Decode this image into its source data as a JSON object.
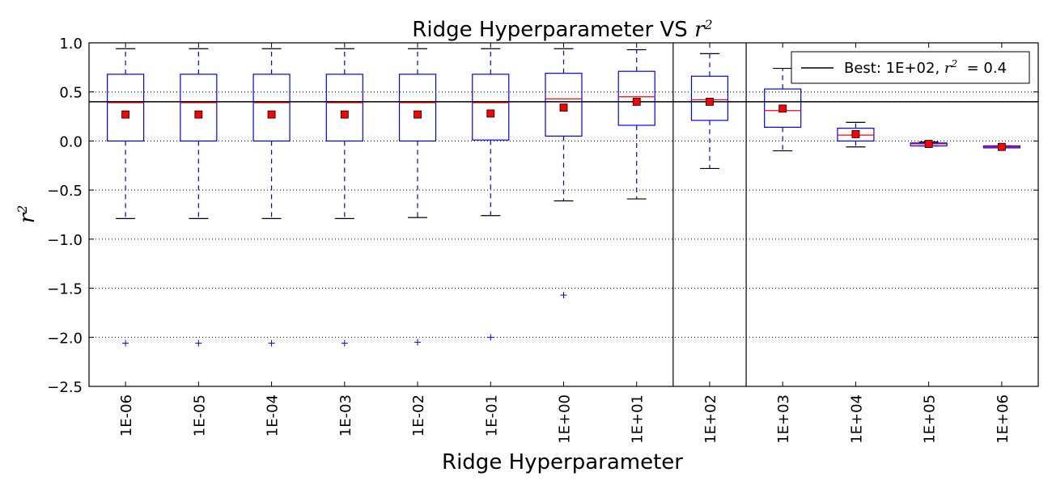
{
  "chart_data": {
    "type": "box",
    "title_prefix": "Ridge Hyperparameter VS ",
    "title_math": "r",
    "title_math_sup": "2",
    "xlabel": "Ridge Hyperparameter",
    "ylabel_math": "r",
    "ylabel_math_sup": "2",
    "ylim": [
      -2.5,
      1.0
    ],
    "yticks": [
      -2.5,
      -2.0,
      -1.5,
      -1.0,
      -0.5,
      0.0,
      0.5,
      1.0
    ],
    "ytick_labels": [
      "−2.5",
      "−2.0",
      "−1.5",
      "−1.0",
      "−0.5",
      "0.0",
      "0.5",
      "1.0"
    ],
    "grid": "horizontal-dotted",
    "categories": [
      "1E-06",
      "1E-05",
      "1E-04",
      "1E-03",
      "1E-02",
      "1E-01",
      "1E+00",
      "1E+01",
      "1E+02",
      "1E+03",
      "1E+04",
      "1E+05",
      "1E+06"
    ],
    "boxes": [
      {
        "whisker_low": -0.79,
        "q1": 0.0,
        "median": 0.39,
        "q3": 0.68,
        "whisker_high": 0.94,
        "mean": 0.27,
        "outliers": [
          -2.06
        ]
      },
      {
        "whisker_low": -0.79,
        "q1": 0.0,
        "median": 0.39,
        "q3": 0.68,
        "whisker_high": 0.94,
        "mean": 0.27,
        "outliers": [
          -2.06
        ]
      },
      {
        "whisker_low": -0.79,
        "q1": 0.0,
        "median": 0.39,
        "q3": 0.68,
        "whisker_high": 0.94,
        "mean": 0.27,
        "outliers": [
          -2.06
        ]
      },
      {
        "whisker_low": -0.79,
        "q1": 0.0,
        "median": 0.39,
        "q3": 0.68,
        "whisker_high": 0.94,
        "mean": 0.27,
        "outliers": [
          -2.06
        ]
      },
      {
        "whisker_low": -0.78,
        "q1": 0.0,
        "median": 0.39,
        "q3": 0.68,
        "whisker_high": 0.94,
        "mean": 0.27,
        "outliers": [
          -2.05
        ]
      },
      {
        "whisker_low": -0.76,
        "q1": 0.01,
        "median": 0.39,
        "q3": 0.68,
        "whisker_high": 0.94,
        "mean": 0.28,
        "outliers": [
          -2.0
        ]
      },
      {
        "whisker_low": -0.61,
        "q1": 0.05,
        "median": 0.43,
        "q3": 0.69,
        "whisker_high": 0.94,
        "mean": 0.34,
        "outliers": [
          -1.57
        ]
      },
      {
        "whisker_low": -0.59,
        "q1": 0.16,
        "median": 0.45,
        "q3": 0.71,
        "whisker_high": 0.93,
        "mean": 0.4,
        "outliers": []
      },
      {
        "whisker_low": -0.28,
        "q1": 0.21,
        "median": 0.42,
        "q3": 0.66,
        "whisker_high": 0.89,
        "mean": 0.4,
        "outliers": []
      },
      {
        "whisker_low": -0.1,
        "q1": 0.14,
        "median": 0.31,
        "q3": 0.53,
        "whisker_high": 0.74,
        "mean": 0.33,
        "outliers": []
      },
      {
        "whisker_low": -0.06,
        "q1": 0.0,
        "median": 0.06,
        "q3": 0.13,
        "whisker_high": 0.19,
        "mean": 0.07,
        "outliers": []
      },
      {
        "whisker_low": -0.05,
        "q1": -0.05,
        "median": -0.03,
        "q3": -0.02,
        "whisker_high": -0.01,
        "mean": -0.03,
        "outliers": []
      },
      {
        "whisker_low": -0.07,
        "q1": -0.07,
        "median": -0.06,
        "q3": -0.05,
        "whisker_high": -0.05,
        "mean": -0.06,
        "outliers": []
      }
    ],
    "best_index": 8,
    "best_r2": 0.4,
    "legend": {
      "placement": "top-right",
      "prefix": "Best: 1E+02, ",
      "math": "r",
      "math_sup": "2",
      "suffix": "  = 0.4"
    },
    "colors": {
      "box": "#0000ff",
      "median": "#ff0000",
      "mean_marker": "#ff0000",
      "best_line": "#000000",
      "grid": "#7f7f7f"
    }
  }
}
